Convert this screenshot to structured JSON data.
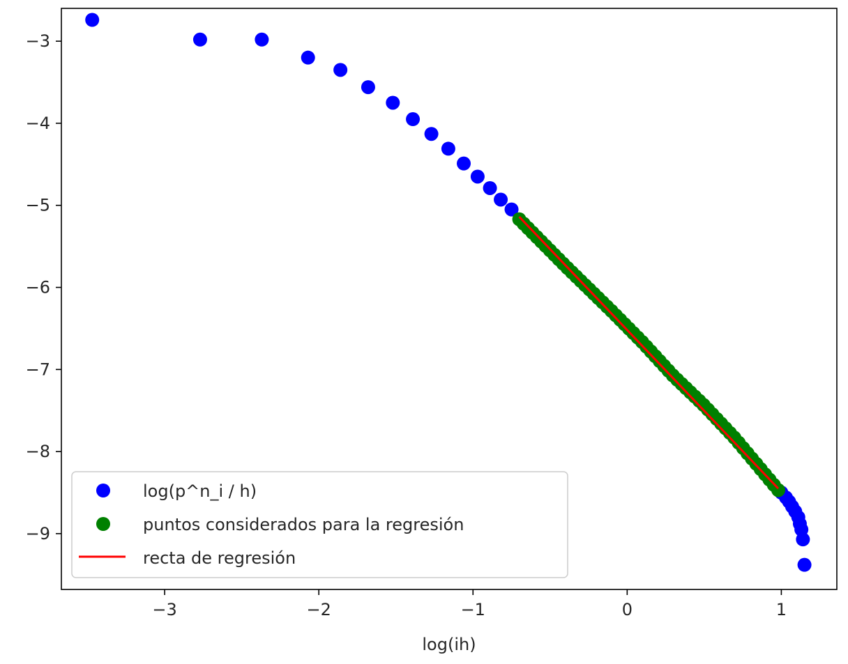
{
  "chart_data": {
    "type": "scatter",
    "title": "",
    "xlabel": "log(ih)",
    "ylabel": "",
    "xlim": [
      -3.67,
      1.36
    ],
    "ylim": [
      -9.68,
      -2.6
    ],
    "x_ticks": [
      -3,
      -2,
      -1,
      0,
      1
    ],
    "y_ticks": [
      -3,
      -4,
      -5,
      -6,
      -7,
      -8,
      -9
    ],
    "x_tick_labels": [
      "−3",
      "−2",
      "−1",
      "0",
      "1"
    ],
    "y_tick_labels": [
      "−3",
      "−4",
      "−5",
      "−6",
      "−7",
      "−8",
      "−9"
    ],
    "grid": false,
    "legend_position": "lower-left",
    "colors": {
      "blue": "#0000ff",
      "green": "#008000",
      "red": "#ff0000",
      "axes": "#000000"
    },
    "series": [
      {
        "name": "log(p^n_i / h)",
        "kind": "points",
        "color": "#0000ff",
        "points": [
          [
            -3.47,
            -2.74
          ],
          [
            -2.77,
            -2.98
          ],
          [
            -2.37,
            -2.98
          ],
          [
            -2.07,
            -3.2
          ],
          [
            -1.86,
            -3.35
          ],
          [
            -1.68,
            -3.56
          ],
          [
            -1.52,
            -3.75
          ],
          [
            -1.39,
            -3.95
          ],
          [
            -1.27,
            -4.13
          ],
          [
            -1.16,
            -4.31
          ],
          [
            -1.06,
            -4.49
          ],
          [
            -0.97,
            -4.65
          ],
          [
            -0.89,
            -4.79
          ],
          [
            -0.82,
            -4.93
          ],
          [
            -0.75,
            -5.05
          ],
          [
            1.0,
            -8.5
          ],
          [
            1.03,
            -8.56
          ],
          [
            1.05,
            -8.61
          ],
          [
            1.07,
            -8.67
          ],
          [
            1.09,
            -8.73
          ],
          [
            1.11,
            -8.8
          ],
          [
            1.12,
            -8.88
          ],
          [
            1.13,
            -8.95
          ],
          [
            1.14,
            -9.07
          ],
          [
            1.15,
            -9.38
          ]
        ]
      },
      {
        "name": "puntos considerados para la regresión",
        "kind": "points",
        "color": "#008000",
        "x_range": [
          -0.7,
          0.98
        ],
        "count": 60,
        "curve": [
          [
            -0.7,
            -5.17
          ],
          [
            -0.4,
            -5.74
          ],
          [
            -0.1,
            -6.29
          ],
          [
            0.1,
            -6.67
          ],
          [
            0.3,
            -7.08
          ],
          [
            0.5,
            -7.44
          ],
          [
            0.7,
            -7.84
          ],
          [
            0.98,
            -8.47
          ]
        ]
      },
      {
        "name": "recta de regresión",
        "kind": "line",
        "color": "#ff0000",
        "x": [
          -0.7,
          0.98
        ],
        "y": [
          -5.14,
          -8.45
        ]
      }
    ]
  }
}
